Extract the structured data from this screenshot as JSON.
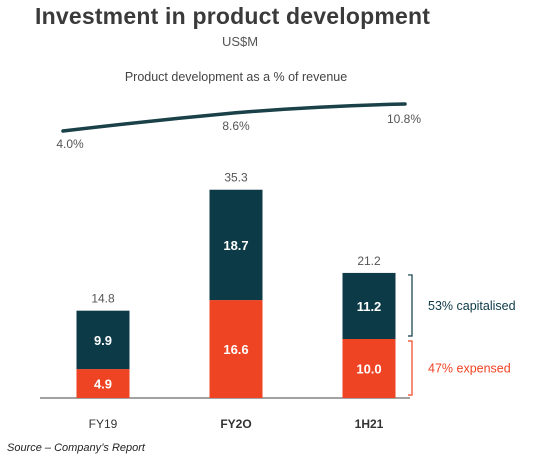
{
  "title": "Investment in product development",
  "subtitle": "US$M",
  "source": "Source – Company’s Report",
  "colors": {
    "capitalised": "#0d3a47",
    "expensed": "#ef4423",
    "line": "#1a4048",
    "text": "#555555",
    "axis": "#444444"
  },
  "chart_data": {
    "type": "bar",
    "stacked": true,
    "categories": [
      "FY19",
      "FY2O",
      "1H21"
    ],
    "series": [
      {
        "name": "47% expensed",
        "values": [
          4.9,
          16.6,
          10.0
        ],
        "labels": [
          "4.9",
          "16.6",
          "10.0"
        ]
      },
      {
        "name": "53% capitalised",
        "values": [
          9.9,
          18.7,
          11.2
        ],
        "labels": [
          "9.9",
          "18.7",
          "11.2"
        ]
      }
    ],
    "totals": [
      14.8,
      35.3,
      21.2
    ],
    "total_labels": [
      "14.8",
      "35.3",
      "21.2"
    ],
    "ylim": [
      0,
      40
    ],
    "legend": "right",
    "line": {
      "title": "Product development as a % of revenue",
      "values": [
        4.0,
        8.6,
        10.8
      ],
      "labels": [
        "4.0%",
        "8.6%",
        "10.8%"
      ]
    }
  }
}
